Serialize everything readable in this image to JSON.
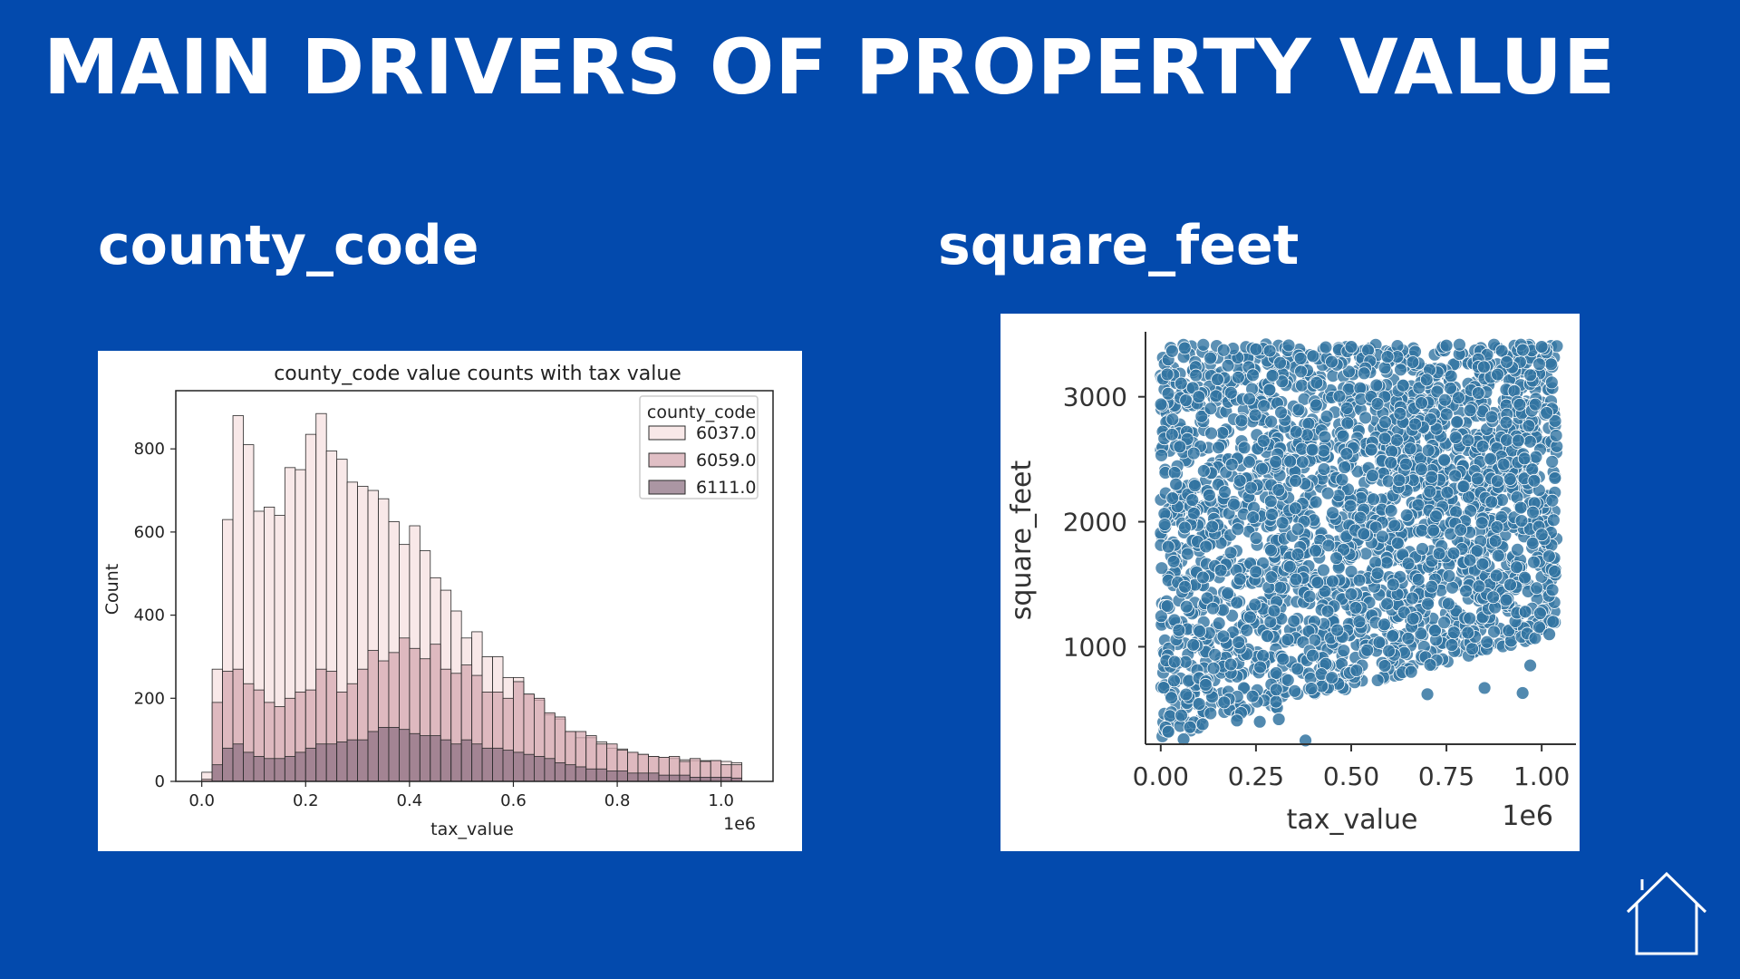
{
  "slide": {
    "title": "MAIN DRIVERS OF PROPERTY VALUE",
    "left_heading": "county_code",
    "right_heading": "square_feet",
    "background_color": "#034AAD",
    "icon": "home-icon"
  },
  "chart_data": [
    {
      "type": "bar",
      "subtype": "stacked-histogram",
      "title": "county_code value counts with tax value",
      "xlabel": "tax_value",
      "ylabel": "Count",
      "x_offset_label": "1e6",
      "xlim": [
        -0.05,
        1.1
      ],
      "ylim": [
        0,
        940
      ],
      "x_ticks": [
        0.0,
        0.2,
        0.4,
        0.6,
        0.8,
        1.0
      ],
      "x_tick_labels": [
        "0.0",
        "0.2",
        "0.4",
        "0.6",
        "0.8",
        "1.0"
      ],
      "y_ticks": [
        0,
        200,
        400,
        600,
        800
      ],
      "y_tick_labels": [
        "0",
        "200",
        "400",
        "600",
        "800"
      ],
      "bin_start": 0.0,
      "bin_width": 0.02,
      "legend": {
        "title": "county_code",
        "placement": "upper right"
      },
      "series": [
        {
          "name": "6037.0",
          "color": "#F6E0E0",
          "values": [
            22,
            270,
            630,
            880,
            810,
            650,
            660,
            640,
            755,
            750,
            835,
            885,
            795,
            775,
            720,
            710,
            700,
            680,
            625,
            570,
            615,
            555,
            490,
            460,
            410,
            345,
            360,
            300,
            300,
            250,
            250,
            210,
            195,
            160,
            150,
            120,
            105,
            105,
            95,
            80,
            78,
            70,
            65,
            60,
            58,
            55,
            52,
            50,
            50,
            50,
            48,
            45
          ]
        },
        {
          "name": "6059.0",
          "color": "#D5A9B1",
          "values": [
            5,
            190,
            265,
            270,
            235,
            220,
            190,
            180,
            200,
            215,
            220,
            270,
            265,
            215,
            235,
            270,
            315,
            290,
            310,
            345,
            320,
            295,
            330,
            270,
            260,
            280,
            255,
            215,
            215,
            200,
            240,
            210,
            200,
            165,
            155,
            120,
            120,
            110,
            90,
            90,
            75,
            70,
            65,
            60,
            58,
            60,
            48,
            55,
            48,
            50,
            40,
            40
          ]
        },
        {
          "name": "6111.0",
          "color": "#8F7384",
          "values": [
            0,
            40,
            80,
            90,
            70,
            60,
            55,
            55,
            60,
            70,
            80,
            90,
            90,
            95,
            100,
            100,
            120,
            130,
            130,
            125,
            115,
            110,
            110,
            100,
            90,
            100,
            90,
            80,
            80,
            75,
            70,
            65,
            60,
            55,
            45,
            40,
            35,
            30,
            30,
            25,
            25,
            20,
            20,
            20,
            15,
            15,
            15,
            10,
            10,
            10,
            10,
            8
          ]
        }
      ]
    },
    {
      "type": "scatter",
      "xlabel": "tax_value",
      "ylabel": "square_feet",
      "x_offset_label": "1e6",
      "xlim": [
        -0.04,
        1.09
      ],
      "ylim": [
        220,
        3520
      ],
      "x_ticks": [
        0.0,
        0.25,
        0.5,
        0.75,
        1.0
      ],
      "x_tick_labels": [
        "0.00",
        "0.25",
        "0.50",
        "0.75",
        "1.00"
      ],
      "y_ticks": [
        1000,
        2000,
        3000
      ],
      "y_tick_labels": [
        "1000",
        "2000",
        "3000"
      ],
      "marker_color": "#3274A1",
      "points": [
        [
          0.063,
          3390
        ],
        [
          0.06,
          260
        ],
        [
          0.38,
          250
        ],
        [
          0.02,
          320
        ],
        [
          0.11,
          380
        ],
        [
          0.7,
          620
        ],
        [
          0.97,
          850
        ],
        [
          1.03,
          1200
        ],
        [
          1.02,
          1100
        ],
        [
          0.95,
          630
        ],
        [
          0.85,
          670
        ],
        [
          0.1,
          3000
        ],
        [
          0.05,
          2600
        ],
        [
          0.04,
          2300
        ],
        [
          0.02,
          1800
        ],
        [
          0.25,
          3380
        ],
        [
          0.5,
          3400
        ],
        [
          0.75,
          3410
        ],
        [
          1.0,
          3400
        ],
        [
          0.2,
          410
        ],
        [
          0.31,
          420
        ],
        [
          0.26,
          400
        ]
      ]
    }
  ]
}
